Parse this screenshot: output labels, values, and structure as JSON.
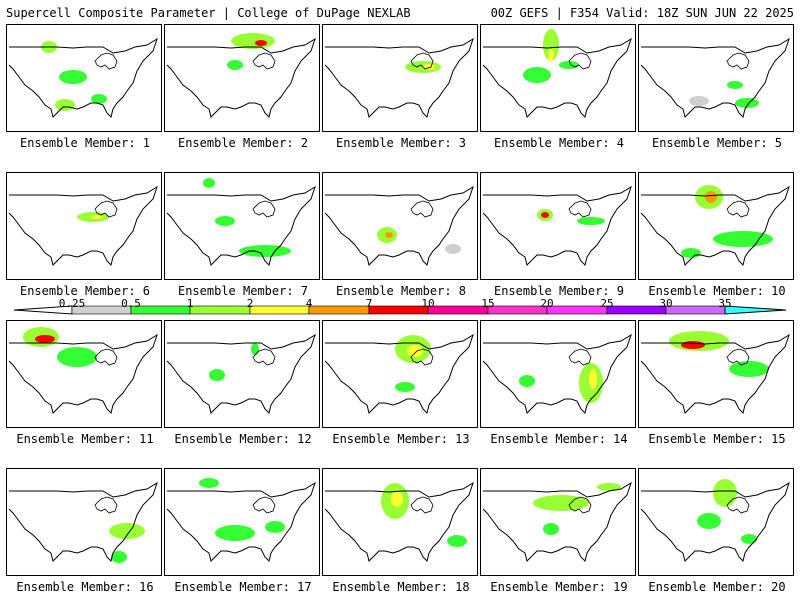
{
  "header": {
    "left": "Supercell Composite Parameter | College of DuPage NEXLAB",
    "right": "00Z GEFS | F354 Valid: 18Z SUN JUN 22 2025"
  },
  "panels": [
    "Ensemble Member: 1",
    "Ensemble Member: 2",
    "Ensemble Member: 3",
    "Ensemble Member: 4",
    "Ensemble Member: 5",
    "Ensemble Member: 6",
    "Ensemble Member: 7",
    "Ensemble Member: 8",
    "Ensemble Member: 9",
    "Ensemble Member: 10",
    "Ensemble Member: 11",
    "Ensemble Member: 12",
    "Ensemble Member: 13",
    "Ensemble Member: 14",
    "Ensemble Member: 15",
    "Ensemble Member: 16",
    "Ensemble Member: 17",
    "Ensemble Member: 18",
    "Ensemble Member: 19",
    "Ensemble Member: 20"
  ],
  "colorbar": {
    "ticks": [
      "0.25",
      "0.5",
      "1",
      "2",
      "4",
      "7",
      "10",
      "15",
      "20",
      "25",
      "30",
      "35"
    ],
    "colors": [
      "#d0d0d0",
      "#33ff33",
      "#99ff33",
      "#ffff33",
      "#ff9900",
      "#ff0000",
      "#ff0099",
      "#ff33cc",
      "#ff33ff",
      "#9900ff",
      "#cc66ff",
      "#33ffff"
    ]
  }
}
